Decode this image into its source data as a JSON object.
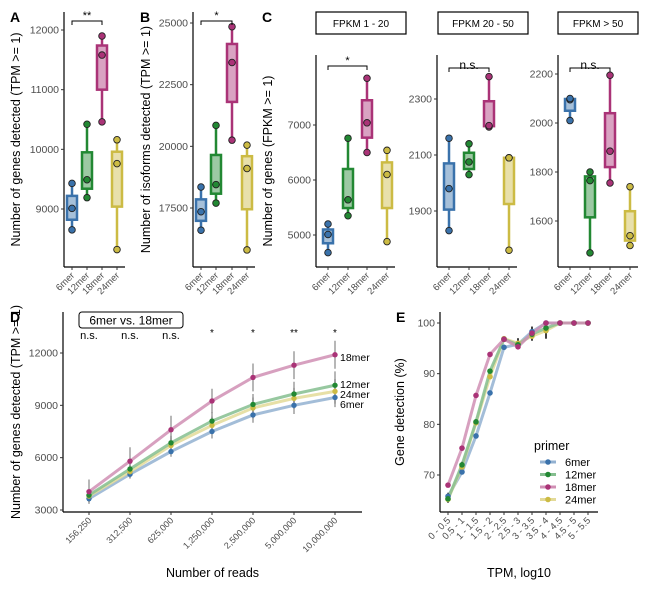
{
  "colors": {
    "6mer": "#3a72ab",
    "12mer": "#228833",
    "18mer": "#aa3377",
    "24mer": "#ccbb44",
    "axis": "#000000",
    "tick_text": "#4d4d4d"
  },
  "chart_data": [
    {
      "id": "A",
      "panel_label": "A",
      "type": "box",
      "ylabel": "Number of genes detected (TPM >= 1)",
      "categories": [
        "6mer",
        "12mer",
        "18mer",
        "24mer"
      ],
      "yticks": [
        9000,
        10000,
        11000,
        12000
      ],
      "ylim": [
        8250,
        12300
      ],
      "significance": {
        "from": "6mer",
        "to": "18mer",
        "label": "**"
      },
      "series": [
        {
          "name": "6mer",
          "points": [
            8650,
            9010,
            9430
          ],
          "box": [
            8820,
            9010,
            9220
          ]
        },
        {
          "name": "12mer",
          "points": [
            9190,
            9490,
            10420
          ],
          "box": [
            9340,
            9490,
            9950
          ]
        },
        {
          "name": "18mer",
          "points": [
            10460,
            11580,
            11900
          ],
          "box": [
            11000,
            11580,
            11740
          ]
        },
        {
          "name": "24mer",
          "points": [
            8320,
            9760,
            10160
          ],
          "box": [
            9040,
            9760,
            9960
          ]
        }
      ]
    },
    {
      "id": "B",
      "panel_label": "B",
      "type": "box",
      "ylabel": "Number of isoforms detected (TPM >= 1)",
      "categories": [
        "6mer",
        "12mer",
        "18mer",
        "24mer"
      ],
      "yticks": [
        17500,
        20000,
        22500,
        25000
      ],
      "ylim": [
        15300,
        25600
      ],
      "significance": {
        "from": "6mer",
        "to": "18mer",
        "label": "*"
      },
      "series": [
        {
          "name": "6mer",
          "points": [
            16600,
            17350,
            18350
          ],
          "box": [
            16980,
            17350,
            17850
          ]
        },
        {
          "name": "12mer",
          "points": [
            17700,
            18450,
            20850
          ],
          "box": [
            18080,
            18450,
            19650
          ]
        },
        {
          "name": "18mer",
          "points": [
            20250,
            23400,
            24850
          ],
          "box": [
            21800,
            23400,
            24150
          ]
        },
        {
          "name": "24mer",
          "points": [
            15800,
            19100,
            20050
          ],
          "box": [
            17450,
            19100,
            19600
          ]
        }
      ]
    },
    {
      "id": "C1",
      "panel_label": "C",
      "type": "box",
      "strip": "FPKM 1 - 20",
      "ylabel": "Number of genes (FPKM >= 1)",
      "categories": [
        "6mer",
        "12mer",
        "18mer",
        "24mer"
      ],
      "yticks": [
        5000,
        6000,
        7000
      ],
      "ylim": [
        4400,
        8150
      ],
      "significance": {
        "from": "6mer",
        "to": "18mer",
        "label": "*"
      },
      "series": [
        {
          "name": "6mer",
          "points": [
            4680,
            5010,
            5200
          ],
          "box": [
            4850,
            5010,
            5100
          ]
        },
        {
          "name": "12mer",
          "points": [
            5350,
            5640,
            6760
          ],
          "box": [
            5490,
            5640,
            6200
          ]
        },
        {
          "name": "18mer",
          "points": [
            6500,
            7040,
            7850
          ],
          "box": [
            6770,
            7040,
            7450
          ]
        },
        {
          "name": "24mer",
          "points": [
            4880,
            6100,
            6540
          ],
          "box": [
            5490,
            6100,
            6320
          ]
        }
      ]
    },
    {
      "id": "C2",
      "type": "box",
      "strip": "FPKM 20 - 50",
      "categories": [
        "6mer",
        "12mer",
        "18mer",
        "24mer"
      ],
      "yticks": [
        1900,
        2100,
        2300
      ],
      "ylim": [
        1710,
        2440
      ],
      "significance": {
        "from": "6mer",
        "to": "18mer",
        "label": "n.s."
      },
      "series": [
        {
          "name": "6mer",
          "points": [
            1830,
            1980,
            2160
          ],
          "box": [
            1905,
            1980,
            2070
          ]
        },
        {
          "name": "12mer",
          "points": [
            2030,
            2075,
            2140
          ],
          "box": [
            2050,
            2075,
            2108
          ]
        },
        {
          "name": "18mer",
          "points": [
            2200,
            2205,
            2380
          ],
          "box": [
            2203,
            2205,
            2292
          ]
        },
        {
          "name": "24mer",
          "points": [
            1760,
            2090,
            2090
          ],
          "box": [
            1925,
            2090,
            2090
          ]
        }
      ]
    },
    {
      "id": "C3",
      "type": "box",
      "strip": "FPKM > 50",
      "categories": [
        "6mer",
        "12mer",
        "18mer",
        "24mer"
      ],
      "yticks": [
        1600,
        1800,
        2000,
        2200
      ],
      "ylim": [
        1450,
        2270
      ],
      "significance": {
        "from": "6mer",
        "to": "18mer",
        "label": "n.s."
      },
      "series": [
        {
          "name": "6mer",
          "points": [
            2010,
            2095,
            2100
          ],
          "box": [
            2050,
            2095,
            2098
          ]
        },
        {
          "name": "12mer",
          "points": [
            1470,
            1765,
            1800
          ],
          "box": [
            1615,
            1765,
            1782
          ]
        },
        {
          "name": "18mer",
          "points": [
            1755,
            1885,
            2195
          ],
          "box": [
            1820,
            1885,
            2040
          ]
        },
        {
          "name": "24mer",
          "points": [
            1500,
            1540,
            1740
          ],
          "box": [
            1520,
            1540,
            1640
          ]
        }
      ]
    },
    {
      "id": "D",
      "panel_label": "D",
      "type": "line",
      "xlabel": "Number of reads",
      "ylabel": "Number of genes detected (TPM >= 1)",
      "categories": [
        "156,250",
        "312,500",
        "625,000",
        "1,250,000",
        "2,500,000",
        "5,000,000",
        "10,000,000"
      ],
      "yticks": [
        3000,
        6000,
        9000,
        12000
      ],
      "ylim": [
        2900,
        14000
      ],
      "comparison_label": "6mer vs. 18mer",
      "significance": [
        "n.s.",
        "n.s.",
        "n.s.",
        "*",
        "*",
        "**",
        "*"
      ],
      "series": [
        {
          "name": "6mer",
          "values": [
            3650,
            5050,
            6350,
            7500,
            8450,
            9000,
            9450
          ],
          "err": [
            200,
            250,
            300,
            400,
            450,
            500,
            550
          ]
        },
        {
          "name": "12mer",
          "values": [
            3850,
            5350,
            6850,
            8100,
            9050,
            9650,
            10150
          ],
          "err": [
            300,
            350,
            400,
            500,
            600,
            700,
            800
          ]
        },
        {
          "name": "18mer",
          "values": [
            4050,
            5800,
            7600,
            9250,
            10600,
            11300,
            11900
          ],
          "err": [
            700,
            800,
            800,
            700,
            800,
            800,
            800
          ]
        },
        {
          "name": "24mer",
          "values": [
            3800,
            5200,
            6700,
            7850,
            8850,
            9400,
            9800
          ],
          "err": [
            300,
            350,
            400,
            500,
            600,
            600,
            700
          ]
        }
      ],
      "end_labels": [
        "18mer",
        "12mer",
        "24mer",
        "6mer"
      ]
    },
    {
      "id": "E",
      "panel_label": "E",
      "type": "line",
      "xlabel": "TPM, log10",
      "ylabel": "Gene detection (%)",
      "categories": [
        "0 - 0.5",
        "0.5 - 1",
        "1 - 1.5",
        "1.5 - 2",
        "2 - 2.5",
        "2.5 - 3",
        "3 - 3.5",
        "3.5 - 4",
        "4 - 4.5",
        "4.5 - 5",
        "5 - 5.5"
      ],
      "yticks": [
        70,
        80,
        90,
        100
      ],
      "ylim": [
        64,
        101.5
      ],
      "legend": {
        "title": "primer",
        "position": "bottom-right",
        "entries": [
          "6mer",
          "12mer",
          "18mer",
          "24mer"
        ]
      },
      "series": [
        {
          "name": "6mer",
          "values": [
            65.8,
            70.6,
            77.7,
            86.2,
            95.2,
            95.8,
            98.3,
            100,
            100,
            100,
            100
          ]
        },
        {
          "name": "12mer",
          "values": [
            65.3,
            72.0,
            80.5,
            90.5,
            96.8,
            95.7,
            97.8,
            99.0,
            100,
            100,
            100
          ]
        },
        {
          "name": "18mer",
          "values": [
            68.0,
            75.3,
            85.7,
            93.8,
            96.8,
            95.3,
            98.0,
            100,
            100,
            100,
            100
          ]
        },
        {
          "name": "24mer",
          "values": [
            65.2,
            71.6,
            80.3,
            89.4,
            96.9,
            96.0,
            97.4,
            98.5,
            100,
            100,
            100
          ]
        }
      ]
    }
  ]
}
